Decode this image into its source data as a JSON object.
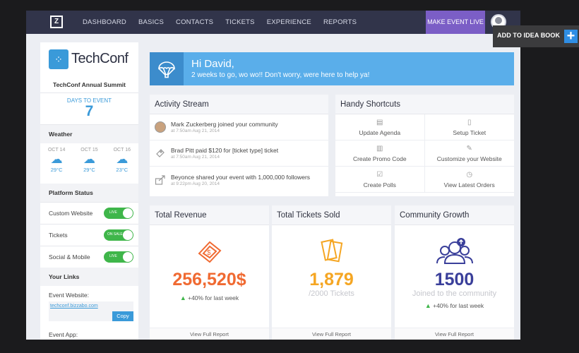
{
  "nav": {
    "logo": "Z",
    "items": [
      "DASHBOARD",
      "BASICS",
      "CONTACTS",
      "TICKETS",
      "EXPERIENCE",
      "REPORTS"
    ],
    "make_live": "MAKE EVENT LIVE"
  },
  "sidebar": {
    "logo_text": "TechConf",
    "event_name": "TechConf Annual Summit",
    "days_label": "DAYS TO EVENT",
    "days_value": "7",
    "weather_title": "Weather",
    "weather": [
      {
        "day": "OCT 14",
        "temp": "29°C",
        "icon": "cloud-rain-icon"
      },
      {
        "day": "OCT 15",
        "temp": "29°C",
        "icon": "cloud-rain-icon"
      },
      {
        "day": "OCT 16",
        "temp": "23°C",
        "icon": "cloud-upload-icon"
      }
    ],
    "status_title": "Platform Status",
    "status_rows": [
      {
        "label": "Custom Website",
        "state": "LIVE"
      },
      {
        "label": "Tickets",
        "state": "ON SALE"
      },
      {
        "label": "Social & Mobile",
        "state": "LIVE"
      }
    ],
    "links_title": "Your Links",
    "website_label": "Event Website:",
    "website_url": "techconf.bizzabo.com",
    "copy_label": "Copy",
    "app_label": "Event App:"
  },
  "welcome": {
    "title": "Hi David,",
    "subtitle": "2 weeks to go, wo wo!! Don't worry, were here to help ya!"
  },
  "activity": {
    "title": "Activity Stream",
    "items": [
      {
        "text": "Mark Zuckerberg joined your community",
        "time": "at 7:50am Aug 21, 2014"
      },
      {
        "text": "Brad Pitt paid $120 for [ticket type] ticket",
        "time": "at 7:50am Aug 21, 2014"
      },
      {
        "text": "Beyonce shared your event with 1,000,000 followers",
        "time": "at 9:22pm Aug 20, 2014"
      }
    ]
  },
  "shortcuts": {
    "title": "Handy Shortcuts",
    "items": [
      "Update Agenda",
      "Setup Ticket",
      "Create Promo Code",
      "Customize your Website",
      "Create Polls",
      "View Latest Orders"
    ]
  },
  "stats": {
    "revenue": {
      "title": "Total Revenue",
      "value": "256,520$",
      "sub": "",
      "growth": "+40% for last week",
      "footer": "View Full Report",
      "color": "#f06a32"
    },
    "tickets": {
      "title": "Total Tickets Sold",
      "value": "1,879",
      "sub": "/2000 Tickets",
      "growth": "",
      "footer": "View Full Report",
      "color": "#f5a623"
    },
    "community": {
      "title": "Community Growth",
      "value": "1500",
      "sub": "Joined to the community",
      "growth": "+40% for last week",
      "footer": "View Full Report",
      "color": "#3a3f9a"
    }
  },
  "overlay": {
    "label": "ADD TO IDEA BOOK",
    "plus": "+"
  }
}
